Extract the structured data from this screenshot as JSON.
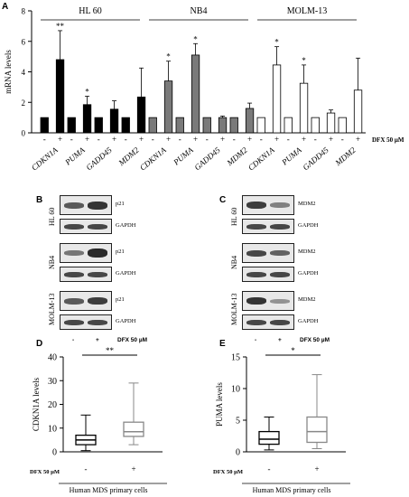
{
  "panels": {
    "A": "A",
    "B": "B",
    "C": "C",
    "D": "D",
    "E": "E"
  },
  "chart_data": [
    {
      "type": "bar",
      "panel": "A",
      "groups": [
        "HL 60",
        "NB4",
        "MOLM-13"
      ],
      "categories": [
        "CDKN1A",
        "PUMA",
        "GADD45",
        "MDM2"
      ],
      "treatment_labels": [
        "-",
        "+"
      ],
      "treatment_axis_label": "DFX 50 µM",
      "ylabel": "mRNA levels",
      "ylim": [
        0,
        8
      ],
      "yticks": [
        0,
        2,
        4,
        6,
        8
      ],
      "group_colors": [
        "#000000",
        "#7a7a7a",
        "#ffffff"
      ],
      "values": {
        "HL 60": {
          "minus": [
            1,
            1,
            1,
            1
          ],
          "plus": [
            4.8,
            1.85,
            1.55,
            2.35
          ],
          "err": [
            1.9,
            0.55,
            0.55,
            1.9
          ],
          "sig": [
            "**",
            "*",
            "",
            ""
          ]
        },
        "NB4": {
          "minus": [
            1,
            1,
            1,
            1
          ],
          "plus": [
            3.4,
            5.1,
            1.0,
            1.6
          ],
          "err": [
            1.3,
            0.75,
            0.1,
            0.35
          ],
          "sig": [
            "*",
            "*",
            "",
            ""
          ]
        },
        "MOLM-13": {
          "minus": [
            1,
            1,
            1,
            1
          ],
          "plus": [
            4.45,
            3.25,
            1.3,
            2.8
          ],
          "err": [
            1.2,
            1.2,
            0.2,
            2.1
          ],
          "sig": [
            "*",
            "*",
            "",
            ""
          ]
        }
      }
    },
    {
      "type": "box",
      "panel": "D",
      "categories": [
        "-",
        "+"
      ],
      "ylabel": "CDKN1A levels",
      "ylim": [
        0,
        40
      ],
      "yticks": [
        0,
        10,
        20,
        30,
        40
      ],
      "boxes": [
        {
          "min": 0.5,
          "q1": 3,
          "median": 5,
          "q3": 7,
          "max": 15.5
        },
        {
          "min": 3,
          "q1": 6.5,
          "median": 8.5,
          "q3": 12.5,
          "max": 29
        }
      ],
      "sig": "**",
      "treatment_axis_label": "DFX 50 µM",
      "xlabel": "Human MDS primary cells"
    },
    {
      "type": "box",
      "panel": "E",
      "categories": [
        "-",
        "+"
      ],
      "ylabel": "PUMA levels",
      "ylim": [
        0,
        15
      ],
      "yticks": [
        0,
        5,
        10,
        15
      ],
      "boxes": [
        {
          "min": 0.3,
          "q1": 1.2,
          "median": 2,
          "q3": 3.2,
          "max": 5.5
        },
        {
          "min": 0.5,
          "q1": 1.5,
          "median": 3.2,
          "q3": 5.5,
          "max": 12.2
        }
      ],
      "sig": "*",
      "treatment_axis_label": "DFX 50 µM",
      "xlabel": "Human MDS primary cells"
    }
  ],
  "blots_B": {
    "rows": [
      {
        "cell": "HL 60",
        "proteins": [
          "p21",
          "GAPDH"
        ]
      },
      {
        "cell": "NB4",
        "proteins": [
          "p21",
          "GAPDH"
        ]
      },
      {
        "cell": "MOLM-13",
        "proteins": [
          "p21",
          "GAPDH"
        ]
      }
    ],
    "lanes": [
      "-",
      "+"
    ],
    "treatment": "DFX 50 µM"
  },
  "blots_C": {
    "rows": [
      {
        "cell": "HL 60",
        "proteins": [
          "MDM2",
          "GAPDH"
        ]
      },
      {
        "cell": "NB4",
        "proteins": [
          "MDM2",
          "GAPDH"
        ]
      },
      {
        "cell": "MOLM-13",
        "proteins": [
          "MDM2",
          "GAPDH"
        ]
      }
    ],
    "lanes": [
      "-",
      "+"
    ],
    "treatment": "DFX 50 µM"
  }
}
